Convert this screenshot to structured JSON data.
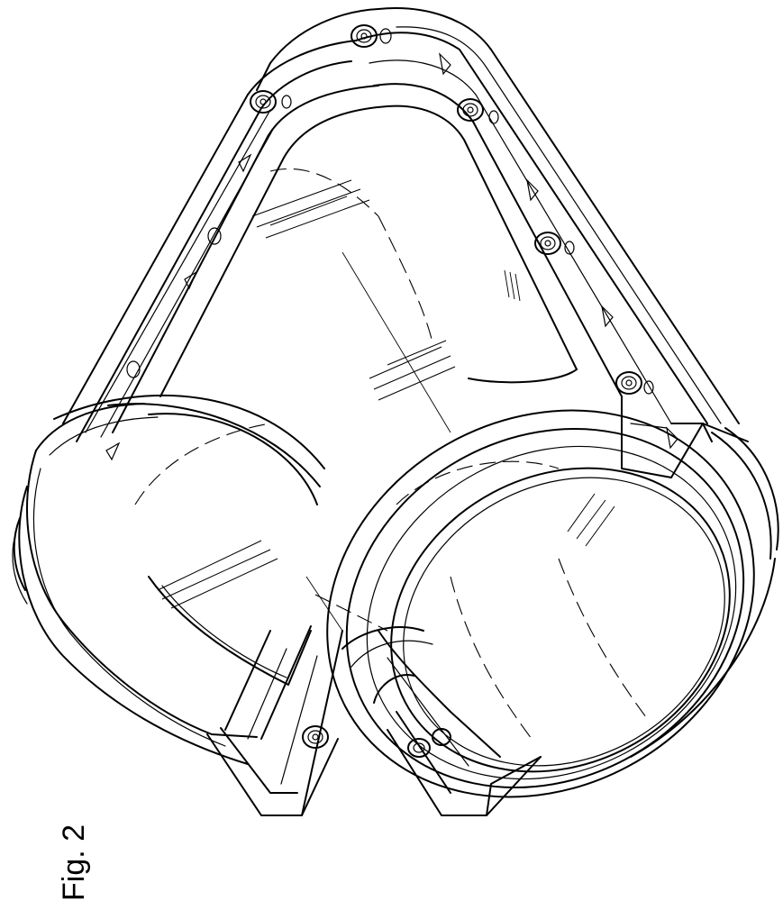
{
  "figure": {
    "label": "Fig. 2"
  }
}
